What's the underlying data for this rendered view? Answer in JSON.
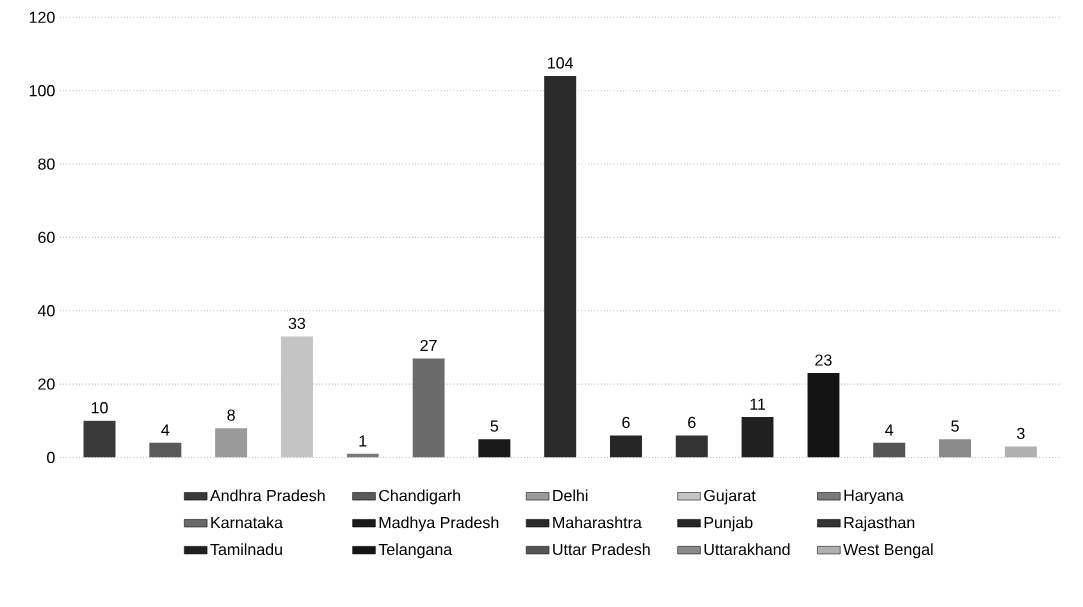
{
  "chart_data": {
    "type": "bar",
    "categories": [
      null,
      null,
      null,
      null,
      null,
      null,
      null,
      null,
      null,
      null,
      null,
      null,
      null,
      null,
      null
    ],
    "series": [
      {
        "name": "Andhra Pradesh",
        "color": "#3a3a3a",
        "values": [
          10,
          null,
          null,
          null,
          null,
          null,
          null,
          null,
          null,
          null,
          null,
          null,
          null,
          null,
          null
        ]
      },
      {
        "name": "Chandigarh",
        "color": "#5a5a5a",
        "values": [
          null,
          4,
          null,
          null,
          null,
          null,
          null,
          null,
          null,
          null,
          null,
          null,
          null,
          null,
          null
        ]
      },
      {
        "name": "Delhi",
        "color": "#9a9a9a",
        "values": [
          null,
          null,
          8,
          null,
          null,
          null,
          null,
          null,
          null,
          null,
          null,
          null,
          null,
          null,
          null
        ]
      },
      {
        "name": "Gujarat",
        "color": "#c4c4c4",
        "values": [
          null,
          null,
          null,
          33,
          null,
          null,
          null,
          null,
          null,
          null,
          null,
          null,
          null,
          null,
          null
        ]
      },
      {
        "name": "Haryana",
        "color": "#7a7a7a",
        "values": [
          null,
          null,
          null,
          null,
          1,
          null,
          null,
          null,
          null,
          null,
          null,
          null,
          null,
          null,
          null
        ]
      },
      {
        "name": "Karnataka",
        "color": "#6a6a6a",
        "values": [
          null,
          null,
          null,
          null,
          null,
          27,
          null,
          null,
          null,
          null,
          null,
          null,
          null,
          null,
          null
        ]
      },
      {
        "name": "Madhya Pradesh",
        "color": "#1a1a1a",
        "values": [
          null,
          null,
          null,
          null,
          null,
          null,
          5,
          null,
          null,
          null,
          null,
          null,
          null,
          null,
          null
        ]
      },
      {
        "name": "Maharashtra",
        "color": "#2a2a2a",
        "values": [
          null,
          null,
          null,
          null,
          null,
          null,
          null,
          104,
          null,
          null,
          null,
          null,
          null,
          null,
          null
        ]
      },
      {
        "name": "Punjab",
        "color": "#262626",
        "values": [
          null,
          null,
          null,
          null,
          null,
          null,
          null,
          null,
          6,
          null,
          null,
          null,
          null,
          null,
          null
        ]
      },
      {
        "name": "Rajasthan",
        "color": "#333333",
        "values": [
          null,
          null,
          null,
          null,
          null,
          null,
          null,
          null,
          null,
          6,
          null,
          null,
          null,
          null,
          null
        ]
      },
      {
        "name": "Tamilnadu",
        "color": "#202020",
        "values": [
          null,
          null,
          null,
          null,
          null,
          null,
          null,
          null,
          null,
          null,
          11,
          null,
          null,
          null,
          null
        ]
      },
      {
        "name": "Telangana",
        "color": "#141414",
        "values": [
          null,
          null,
          null,
          null,
          null,
          null,
          null,
          null,
          null,
          null,
          null,
          23,
          null,
          null,
          null
        ]
      },
      {
        "name": "Uttar Pradesh",
        "color": "#555555",
        "values": [
          null,
          null,
          null,
          null,
          null,
          null,
          null,
          null,
          null,
          null,
          null,
          null,
          4,
          null,
          null
        ]
      },
      {
        "name": "Uttarakhand",
        "color": "#8a8a8a",
        "values": [
          null,
          null,
          null,
          null,
          null,
          null,
          null,
          null,
          null,
          null,
          null,
          null,
          null,
          5,
          null
        ]
      },
      {
        "name": "West Bengal",
        "color": "#b0b0b0",
        "values": [
          null,
          null,
          null,
          null,
          null,
          null,
          null,
          null,
          null,
          null,
          null,
          null,
          null,
          null,
          3
        ]
      }
    ],
    "ylim": [
      0,
      120
    ],
    "yticks": [
      0,
      20,
      40,
      60,
      80,
      100,
      120
    ],
    "grid": "y",
    "data_labels": true,
    "legend": "bottom"
  }
}
